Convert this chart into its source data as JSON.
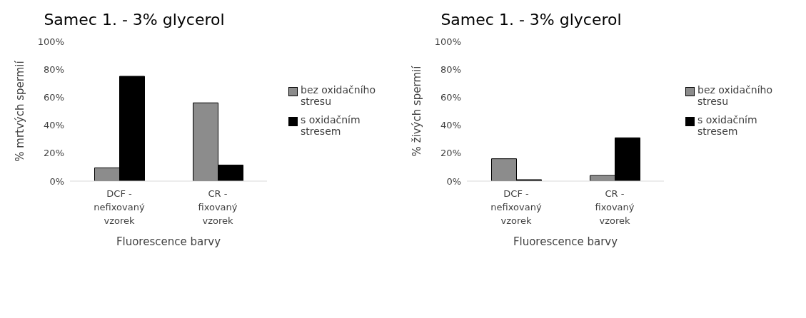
{
  "chart_data": [
    {
      "type": "bar",
      "title": "Samec 1. - 3% glycerol",
      "xlabel": "Fluorescence barvy",
      "ylabel": "% mrtvých spermií",
      "categories": [
        "DCF - nefixovaný vzorek",
        "CR - fixovaný vzorek"
      ],
      "series": [
        {
          "name": "bez oxidačního stresu",
          "color": "#8c8c8c",
          "values": [
            9.5,
            56
          ]
        },
        {
          "name": "s oxidačním stresem",
          "color": "#000000",
          "values": [
            75,
            11.5
          ]
        }
      ],
      "ylim": [
        0,
        100
      ],
      "yticks": [
        {
          "value": 0,
          "label": "0%"
        },
        {
          "value": 20,
          "label": "20%"
        },
        {
          "value": 40,
          "label": "40%"
        },
        {
          "value": 60,
          "label": "60%"
        },
        {
          "value": 80,
          "label": "80%"
        },
        {
          "value": 100,
          "label": "100%"
        }
      ],
      "legend": "right",
      "grid": false
    },
    {
      "type": "bar",
      "title": "Samec 1. - 3% glycerol",
      "xlabel": "Fluorescence barvy",
      "ylabel": "% živých spermií",
      "categories": [
        "DCF - nefixovaný vzorek",
        "CR - fixovaný vzorek"
      ],
      "series": [
        {
          "name": "bez oxidačního stresu",
          "color": "#8c8c8c",
          "values": [
            16,
            4
          ]
        },
        {
          "name": "s oxidačním stresem",
          "color": "#000000",
          "values": [
            1,
            31
          ]
        }
      ],
      "ylim": [
        0,
        100
      ],
      "yticks": [
        {
          "value": 0,
          "label": "0%"
        },
        {
          "value": 20,
          "label": "20%"
        },
        {
          "value": 40,
          "label": "40%"
        },
        {
          "value": 60,
          "label": "60%"
        },
        {
          "value": 80,
          "label": "80%"
        },
        {
          "value": 100,
          "label": "100%"
        }
      ],
      "legend": "right",
      "grid": false
    }
  ]
}
